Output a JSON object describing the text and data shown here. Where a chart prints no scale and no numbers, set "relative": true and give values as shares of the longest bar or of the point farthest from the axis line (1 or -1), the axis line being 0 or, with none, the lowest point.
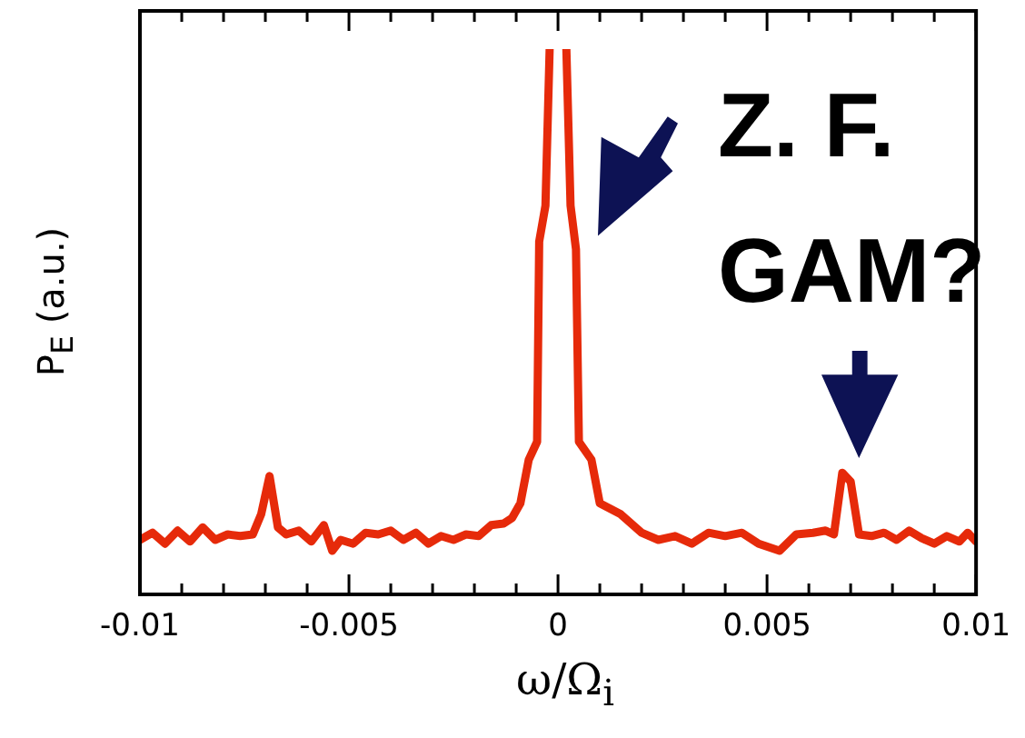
{
  "chart_data": {
    "type": "line",
    "relative": true,
    "xlabel": "ω/Ω$_{i}$",
    "ylabel": "P$_{E}$ (a.u.)",
    "annotations": [
      "Z. F.",
      "GAM?"
    ],
    "xlim": [
      -0.01,
      0.01
    ],
    "xticks": [
      -0.01,
      {
        "value": -0.009,
        "label": null
      },
      {
        "value": -0.008,
        "label": null
      },
      {
        "value": -0.007,
        "label": null
      },
      {
        "value": -0.006,
        "label": null
      },
      -0.005,
      {
        "value": -0.004,
        "label": null
      },
      {
        "value": -0.003,
        "label": null
      },
      {
        "value": -0.002,
        "label": null
      },
      {
        "value": -0.001,
        "label": null
      },
      0,
      {
        "value": 0.001,
        "label": null
      },
      {
        "value": 0.002,
        "label": null
      },
      {
        "value": 0.003,
        "label": null
      },
      {
        "value": 0.004,
        "label": null
      },
      0.005,
      {
        "value": 0.006,
        "label": null
      },
      {
        "value": 0.007,
        "label": null
      },
      {
        "value": 0.008,
        "label": null
      },
      {
        "value": 0.009,
        "label": null
      },
      0.01
    ],
    "grid": false,
    "legend": false,
    "marker": "none",
    "line_style": "solid",
    "series": [
      {
        "color": "#e62a0a",
        "x": [
          -0.01,
          -0.0097,
          -0.0094,
          -0.0091,
          -0.0088,
          -0.0085,
          -0.0082,
          -0.0079,
          -0.0076,
          -0.0073,
          -0.0071,
          -0.0069,
          -0.0067,
          -0.0065,
          -0.0062,
          -0.0059,
          -0.0056,
          -0.0054,
          -0.0052,
          -0.0049,
          -0.0046,
          -0.0043,
          -0.004,
          -0.0037,
          -0.0034,
          -0.0031,
          -0.0028,
          -0.0025,
          -0.0022,
          -0.0019,
          -0.0016,
          -0.0013,
          -0.0011,
          -0.0009,
          -0.0007,
          -0.0005,
          -0.00045,
          -0.0003,
          -0.0002,
          0,
          0.0002,
          0.0003,
          0.00043,
          0.0005,
          0.0008,
          0.001,
          0.0015,
          0.002,
          0.0024,
          0.0028,
          0.0032,
          0.0036,
          0.004,
          0.0044,
          0.0048,
          0.0053,
          0.0057,
          0.0061,
          0.0064,
          0.0066,
          0.0068,
          0.007,
          0.0072,
          0.0075,
          0.0078,
          0.0081,
          0.0084,
          0.0087,
          0.009,
          0.0093,
          0.0096,
          0.0098,
          0.01
        ],
        "values": [
          0.1,
          0.113,
          0.093,
          0.117,
          0.097,
          0.123,
          0.1,
          0.11,
          0.107,
          0.11,
          0.147,
          0.217,
          0.123,
          0.11,
          0.117,
          0.097,
          0.127,
          0.08,
          0.1,
          0.093,
          0.113,
          0.11,
          0.117,
          0.1,
          0.113,
          0.093,
          0.107,
          0.1,
          0.11,
          0.107,
          0.127,
          0.13,
          0.14,
          0.167,
          0.247,
          0.28,
          0.647,
          0.713,
          1,
          null,
          1,
          0.713,
          0.633,
          0.28,
          0.247,
          0.167,
          0.147,
          0.113,
          0.1,
          0.107,
          0.093,
          0.113,
          0.107,
          0.113,
          0.093,
          0.08,
          0.11,
          0.113,
          0.117,
          0.11,
          0.223,
          0.207,
          0.11,
          0.107,
          0.113,
          0.1,
          0.117,
          0.103,
          0.093,
          0.107,
          0.097,
          0.113,
          0.097
        ]
      }
    ]
  }
}
